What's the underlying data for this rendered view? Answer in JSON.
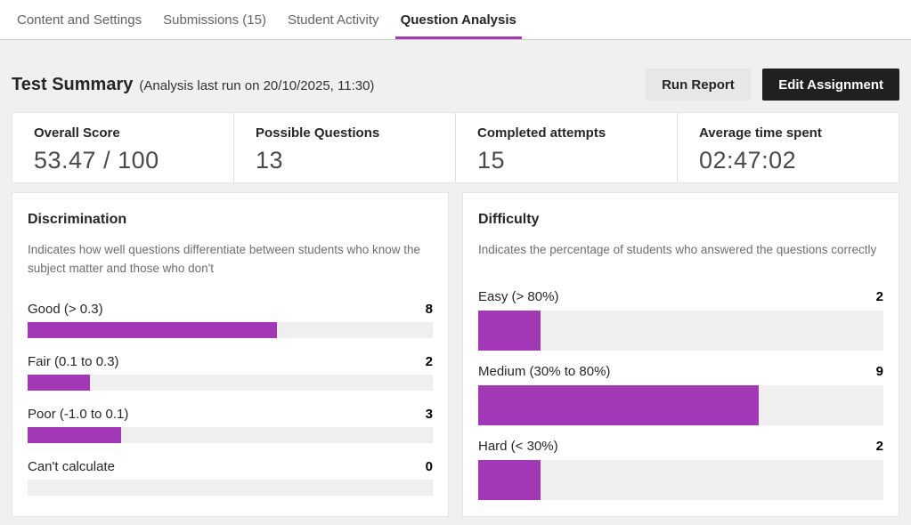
{
  "tabs": [
    {
      "label": "Content and Settings",
      "active": false
    },
    {
      "label": "Submissions (15)",
      "active": false
    },
    {
      "label": "Student Activity",
      "active": false
    },
    {
      "label": "Question Analysis",
      "active": true
    }
  ],
  "header": {
    "title": "Test Summary",
    "subtitle": "(Analysis last run on 20/10/2025, 11:30)",
    "run_report_label": "Run Report",
    "edit_assignment_label": "Edit Assignment"
  },
  "stats": [
    {
      "label": "Overall Score",
      "value": "53.47 / 100"
    },
    {
      "label": "Possible Questions",
      "value": "13"
    },
    {
      "label": "Completed attempts",
      "value": "15"
    },
    {
      "label": "Average time spent",
      "value": "02:47:02"
    }
  ],
  "colors": {
    "accent": "#a338b6",
    "bar_track": "#efefef",
    "page_background": "#f0f0f0",
    "primary_button_background": "#202020",
    "secondary_button_background": "#e7e7e7"
  },
  "chart_data": [
    {
      "type": "bar",
      "title": "Discrimination",
      "description": "Indicates how well questions differentiate between students who know the subject matter and those who don't",
      "categories": [
        "Good (> 0.3)",
        "Fair (0.1 to 0.3)",
        "Poor (-1.0 to 0.1)",
        "Can't calculate"
      ],
      "values": [
        8,
        2,
        3,
        0
      ],
      "max": 13,
      "bar_style": "thin",
      "legend_position": "none",
      "grid": false
    },
    {
      "type": "bar",
      "title": "Difficulty",
      "description": "Indicates the percentage of students who answered the questions correctly",
      "categories": [
        "Easy (> 80%)",
        "Medium (30% to 80%)",
        "Hard (< 30%)"
      ],
      "values": [
        2,
        9,
        2
      ],
      "max": 13,
      "bar_style": "thick",
      "legend_position": "none",
      "grid": false
    }
  ]
}
